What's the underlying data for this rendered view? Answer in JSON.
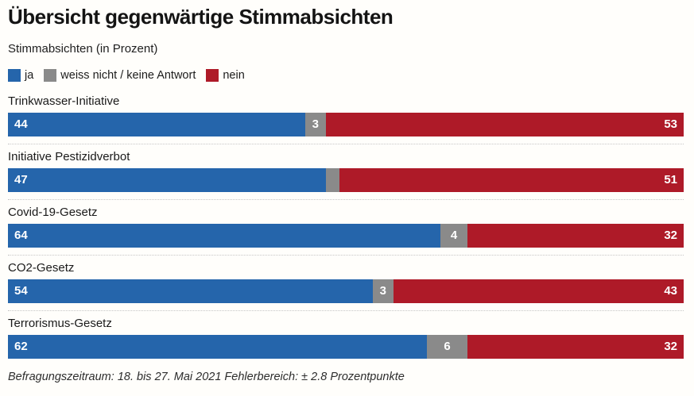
{
  "title": "Übersicht gegenwärtige Stimmabsichten",
  "subtitle": "Stimmabsichten (in Prozent)",
  "legend": [
    {
      "label": "ja",
      "color": "#2565ab"
    },
    {
      "label": "weiss nicht / keine Antwort",
      "color": "#8a8a8a"
    },
    {
      "label": "nein",
      "color": "#ae1a28"
    }
  ],
  "footer": "Befragungszeitraum: 18. bis 27. Mai 2021 Fehlerbereich: ± 2.8 Prozentpunkte",
  "chart_data": {
    "type": "bar",
    "orientation": "horizontal-stacked",
    "title": "Übersicht gegenwärtige Stimmabsichten",
    "subtitle": "Stimmabsichten (in Prozent)",
    "xlim": [
      0,
      100
    ],
    "value_labels": "inside",
    "grid": false,
    "legend_position": "top",
    "categories": [
      "Trinkwasser-Initiative",
      "Initiative Pestizidverbot",
      "Covid-19-Gesetz",
      "CO2-Gesetz",
      "Terrorismus-Gesetz"
    ],
    "series": [
      {
        "name": "ja",
        "color": "#2565ab",
        "values": [
          44,
          47,
          64,
          54,
          62
        ]
      },
      {
        "name": "weiss nicht / keine Antwort",
        "color": "#8a8a8a",
        "values": [
          3,
          2,
          4,
          3,
          6
        ],
        "labels_shown": [
          true,
          false,
          true,
          true,
          true
        ]
      },
      {
        "name": "nein",
        "color": "#ae1a28",
        "values": [
          53,
          51,
          32,
          43,
          32
        ]
      }
    ]
  }
}
